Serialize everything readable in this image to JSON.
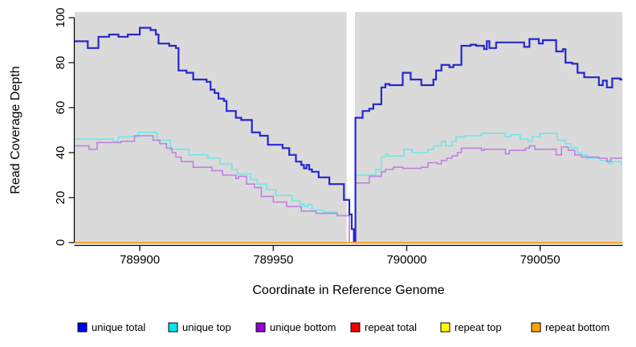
{
  "chart_data": {
    "type": "line",
    "subtype": "step-coverage-plot",
    "xlabel": "Coordinate in Reference Genome",
    "ylabel": "Read Coverage Depth",
    "panel_background": "#DADADA",
    "gap_region": {
      "x_start": 789977.5,
      "x_end": 789980.6,
      "color": "#FFFFFF"
    },
    "x_axis": {
      "min": 789875.6,
      "max": 790080.8,
      "ticks": [
        {
          "value": 789900,
          "label": "789900"
        },
        {
          "value": 789950,
          "label": "789950"
        },
        {
          "value": 790000,
          "label": "790000"
        },
        {
          "value": 790050,
          "label": "790050"
        }
      ]
    },
    "y_axis": {
      "min": 0,
      "max": 100,
      "ticks": [
        {
          "value": 0,
          "label": "0"
        },
        {
          "value": 20,
          "label": "20"
        },
        {
          "value": 40,
          "label": "40"
        },
        {
          "value": 60,
          "label": "60"
        },
        {
          "value": 80,
          "label": "80"
        },
        {
          "value": 100,
          "label": "100"
        }
      ]
    },
    "legend": {
      "position": "bottom"
    },
    "series": [
      {
        "name": "unique total",
        "color": "#2727CE",
        "legend_color": "#0000EE",
        "width": 2.2,
        "step_points": [
          [
            789875.6,
            89.5
          ],
          [
            789880.5,
            86.5
          ],
          [
            789884.5,
            91.5
          ],
          [
            789888.5,
            92.5
          ],
          [
            789892,
            91.5
          ],
          [
            789895.5,
            92.5
          ],
          [
            789900,
            95.5
          ],
          [
            789904,
            94.5
          ],
          [
            789906,
            92.5
          ],
          [
            789907,
            88.5
          ],
          [
            789911,
            87.5
          ],
          [
            789913.5,
            86.5
          ],
          [
            789914.5,
            76.5
          ],
          [
            789917.5,
            75.5
          ],
          [
            789920,
            72.5
          ],
          [
            789925,
            71.5
          ],
          [
            789926.5,
            68
          ],
          [
            789928,
            66.5
          ],
          [
            789929.5,
            64
          ],
          [
            789931.5,
            63
          ],
          [
            789932.5,
            58.5
          ],
          [
            789936,
            55.5
          ],
          [
            789938,
            54.5
          ],
          [
            789942,
            49
          ],
          [
            789945,
            47.5
          ],
          [
            789948,
            43.5
          ],
          [
            789953.5,
            42
          ],
          [
            789956,
            39
          ],
          [
            789958.5,
            36
          ],
          [
            789960.5,
            34.5
          ],
          [
            789961.5,
            33
          ],
          [
            789962.5,
            34.5
          ],
          [
            789963.5,
            32.5
          ],
          [
            789964.5,
            31.5
          ],
          [
            789967,
            29
          ],
          [
            789971,
            26
          ],
          [
            789976.5,
            19
          ],
          [
            789978.5,
            12.5
          ],
          [
            789979.4,
            6
          ],
          [
            789980.2,
            0
          ],
          [
            789980.8,
            55.5
          ],
          [
            789983.5,
            58.5
          ],
          [
            789986,
            59.5
          ],
          [
            789987.5,
            61.5
          ],
          [
            789990.5,
            69
          ],
          [
            789992,
            70.5
          ],
          [
            789993.5,
            70
          ],
          [
            789998.5,
            75.5
          ],
          [
            790001.5,
            72.5
          ],
          [
            790005.5,
            70
          ],
          [
            790010,
            72.5
          ],
          [
            790011,
            76.5
          ],
          [
            790013,
            79
          ],
          [
            790016,
            78
          ],
          [
            790017.5,
            79
          ],
          [
            790020.5,
            87.5
          ],
          [
            790024,
            88
          ],
          [
            790026,
            87.5
          ],
          [
            790029,
            86
          ],
          [
            790030,
            89.5
          ],
          [
            790031,
            86.5
          ],
          [
            790033.5,
            89
          ],
          [
            790044,
            87
          ],
          [
            790046,
            90.5
          ],
          [
            790049.5,
            88.5
          ],
          [
            790051,
            90
          ],
          [
            790056,
            85
          ],
          [
            790058.5,
            86
          ],
          [
            790059.5,
            80
          ],
          [
            790062,
            79.5
          ],
          [
            790064,
            75.5
          ],
          [
            790066.5,
            73.5
          ],
          [
            790072,
            70
          ],
          [
            790073.5,
            72
          ],
          [
            790075,
            69
          ],
          [
            790077,
            73
          ],
          [
            790080,
            72.5
          ]
        ]
      },
      {
        "name": "unique top",
        "color": "#6FE8E8",
        "legend_color": "#00E5EE",
        "width": 1.6,
        "step_points": [
          [
            789875.6,
            46
          ],
          [
            789890,
            45
          ],
          [
            789892,
            47
          ],
          [
            789899.5,
            49
          ],
          [
            789906.5,
            45.5
          ],
          [
            789911.5,
            41.5
          ],
          [
            789918.5,
            39
          ],
          [
            789925.5,
            37.5
          ],
          [
            789930,
            35
          ],
          [
            789934.5,
            32.5
          ],
          [
            789936.5,
            30.5
          ],
          [
            789941.5,
            28
          ],
          [
            789944,
            26
          ],
          [
            789947.5,
            23.5
          ],
          [
            789951,
            21
          ],
          [
            789957,
            18.5
          ],
          [
            789960,
            17
          ],
          [
            789961.5,
            16
          ],
          [
            789963,
            17
          ],
          [
            789964.5,
            14.5
          ],
          [
            789969,
            13.5
          ],
          [
            789974,
            12
          ],
          [
            789978.5,
            0
          ],
          [
            789980.8,
            30
          ],
          [
            789988.5,
            32.5
          ],
          [
            789990.5,
            38
          ],
          [
            789992,
            39.5
          ],
          [
            789993,
            38.5
          ],
          [
            789999,
            41.5
          ],
          [
            790002,
            40
          ],
          [
            790008,
            41.5
          ],
          [
            790010,
            43
          ],
          [
            790013,
            45
          ],
          [
            790014.5,
            43
          ],
          [
            790017,
            45
          ],
          [
            790018.5,
            47
          ],
          [
            790022,
            47.5
          ],
          [
            790028,
            48.5
          ],
          [
            790037,
            47
          ],
          [
            790039,
            48
          ],
          [
            790042.5,
            46
          ],
          [
            790045.5,
            45
          ],
          [
            790047,
            47
          ],
          [
            790050,
            48.5
          ],
          [
            790056.5,
            45.5
          ],
          [
            790059.5,
            44
          ],
          [
            790061.5,
            42
          ],
          [
            790064,
            40
          ],
          [
            790065.5,
            39
          ],
          [
            790067.5,
            37.5
          ],
          [
            790072.5,
            36.5
          ],
          [
            790075.5,
            35
          ],
          [
            790077,
            36
          ],
          [
            790080.5,
            34.5
          ]
        ]
      },
      {
        "name": "unique bottom",
        "color": "#BE82DD",
        "legend_color": "#9400D3",
        "width": 1.6,
        "step_points": [
          [
            789875.6,
            43
          ],
          [
            789881,
            41.5
          ],
          [
            789884,
            44.5
          ],
          [
            789893,
            45
          ],
          [
            789898,
            47.5
          ],
          [
            789905,
            45.5
          ],
          [
            789907.5,
            44
          ],
          [
            789910,
            42
          ],
          [
            789912,
            40
          ],
          [
            789913.5,
            38
          ],
          [
            789915.5,
            36
          ],
          [
            789920,
            33.5
          ],
          [
            789927,
            32
          ],
          [
            789931,
            30
          ],
          [
            789936,
            28.5
          ],
          [
            789937,
            29.5
          ],
          [
            789940,
            26
          ],
          [
            789943,
            24.5
          ],
          [
            789945.5,
            20.5
          ],
          [
            789950,
            18
          ],
          [
            789955,
            16
          ],
          [
            789960.5,
            14
          ],
          [
            789966,
            13
          ],
          [
            789974,
            12
          ],
          [
            789978.5,
            0
          ],
          [
            789980.8,
            26.5
          ],
          [
            789986,
            29.5
          ],
          [
            789990.5,
            31.5
          ],
          [
            789992,
            32.5
          ],
          [
            789995,
            33.5
          ],
          [
            789998.5,
            33
          ],
          [
            790005.5,
            33.5
          ],
          [
            790008,
            35.5
          ],
          [
            790011.5,
            35
          ],
          [
            790013,
            36.5
          ],
          [
            790015,
            37.5
          ],
          [
            790017,
            38.5
          ],
          [
            790019,
            40
          ],
          [
            790020.5,
            42
          ],
          [
            790028,
            41
          ],
          [
            790029,
            41.5
          ],
          [
            790037,
            39.5
          ],
          [
            790038.5,
            41
          ],
          [
            790044.5,
            42
          ],
          [
            790046,
            43
          ],
          [
            790048,
            41.5
          ],
          [
            790056,
            39
          ],
          [
            790058,
            42.5
          ],
          [
            790060.5,
            41
          ],
          [
            790063,
            39
          ],
          [
            790065.5,
            38
          ],
          [
            790072,
            37.5
          ],
          [
            790075,
            36
          ],
          [
            790076.5,
            37.5
          ]
        ]
      },
      {
        "name": "repeat total",
        "color": "#DD0000",
        "legend_color": "#EE0000",
        "width": 1.6,
        "step_points": [
          [
            789875.6,
            0
          ]
        ]
      },
      {
        "name": "repeat top",
        "color": "#FFFF00",
        "legend_color": "#FFFF00",
        "width": 1.6,
        "step_points": [
          [
            789875.6,
            0
          ]
        ]
      },
      {
        "name": "repeat bottom",
        "color": "#FFA432",
        "legend_color": "#FFA500",
        "width": 2,
        "step_points": [
          [
            789875.6,
            0
          ]
        ]
      }
    ]
  }
}
